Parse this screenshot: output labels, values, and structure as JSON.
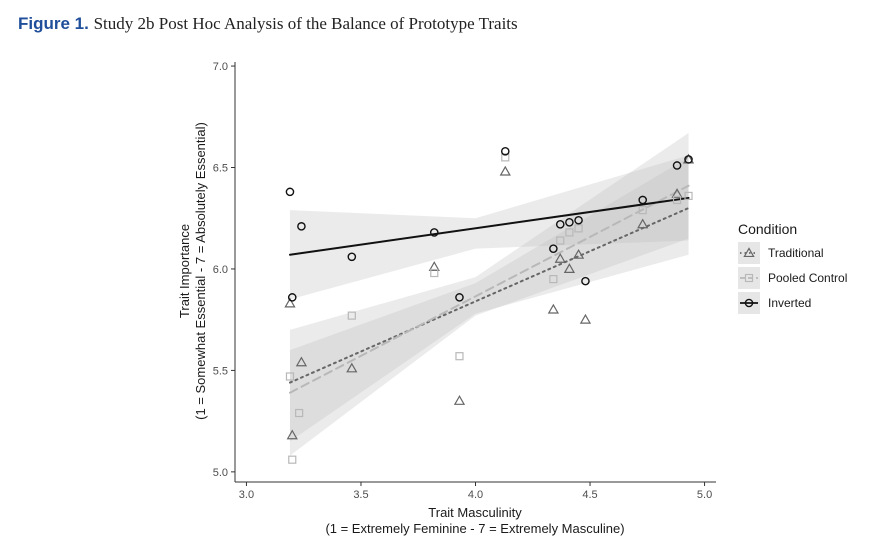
{
  "figure": {
    "label": "Figure 1.",
    "caption": "Study 2b Post Hoc Analysis of the Balance of Prototype Traits"
  },
  "chart_data": {
    "type": "scatter",
    "title": "Study 2b Post Hoc Analysis of the Balance of Prototype Traits",
    "xlabel_line1": "Trait Masculinity",
    "xlabel_line2": "(1 = Extremely Feminine - 7 = Extremely Masculine)",
    "ylabel_line1": "Trait Importance",
    "ylabel_line2": "(1 = Somewhat Essential - 7 = Absolutely Essential)",
    "xlim": [
      2.95,
      5.05
    ],
    "ylim": [
      4.95,
      7.02
    ],
    "x_ticks": [
      3.0,
      3.5,
      4.0,
      4.5,
      5.0
    ],
    "x_tick_labels": [
      "3.0",
      "3.5",
      "4.0",
      "4.5",
      "5.0"
    ],
    "y_ticks": [
      5.0,
      5.5,
      6.0,
      6.5,
      7.0
    ],
    "y_tick_labels": [
      "5.0",
      "5.5",
      "6.0",
      "6.5",
      "7.0"
    ],
    "grid": false,
    "legend": {
      "title": "Condition",
      "position": "right"
    },
    "series": [
      {
        "name": "Traditional",
        "marker": "triangle",
        "line_style": "dotted",
        "color": "#666666",
        "points": [
          [
            3.19,
            5.83
          ],
          [
            3.2,
            5.18
          ],
          [
            3.24,
            5.54
          ],
          [
            3.46,
            5.51
          ],
          [
            3.82,
            6.01
          ],
          [
            3.93,
            5.35
          ],
          [
            4.13,
            6.48
          ],
          [
            4.34,
            5.8
          ],
          [
            4.37,
            6.05
          ],
          [
            4.41,
            6.0
          ],
          [
            4.45,
            6.07
          ],
          [
            4.48,
            5.75
          ],
          [
            4.73,
            6.22
          ],
          [
            4.88,
            6.37
          ],
          [
            4.93,
            6.54
          ]
        ],
        "fit": [
          [
            3.19,
            5.44
          ],
          [
            4.93,
            6.3
          ]
        ],
        "ci_upper": [
          [
            3.19,
            5.6
          ],
          [
            4.0,
            5.93
          ],
          [
            4.93,
            6.55
          ]
        ],
        "ci_lower": [
          [
            3.19,
            5.15
          ],
          [
            4.0,
            5.78
          ],
          [
            4.93,
            6.07
          ]
        ]
      },
      {
        "name": "Pooled Control",
        "marker": "square",
        "line_style": "dashed",
        "color": "#b8b8b8",
        "points": [
          [
            3.19,
            5.47
          ],
          [
            3.2,
            5.06
          ],
          [
            3.23,
            5.29
          ],
          [
            3.46,
            5.77
          ],
          [
            3.82,
            5.98
          ],
          [
            3.93,
            5.57
          ],
          [
            4.13,
            6.55
          ],
          [
            4.34,
            5.95
          ],
          [
            4.37,
            6.14
          ],
          [
            4.41,
            6.18
          ],
          [
            4.45,
            6.2
          ],
          [
            4.73,
            6.29
          ],
          [
            4.88,
            6.34
          ],
          [
            4.93,
            6.36
          ]
        ],
        "fit": [
          [
            3.19,
            5.39
          ],
          [
            4.93,
            6.41
          ]
        ],
        "ci_upper": [
          [
            3.19,
            5.7
          ],
          [
            4.0,
            5.96
          ],
          [
            4.93,
            6.67
          ]
        ],
        "ci_lower": [
          [
            3.19,
            5.08
          ],
          [
            4.0,
            5.77
          ],
          [
            4.93,
            6.15
          ]
        ]
      },
      {
        "name": "Inverted",
        "marker": "circle",
        "line_style": "solid",
        "color": "#111111",
        "points": [
          [
            3.19,
            6.38
          ],
          [
            3.2,
            5.86
          ],
          [
            3.24,
            6.21
          ],
          [
            3.46,
            6.06
          ],
          [
            3.82,
            6.18
          ],
          [
            3.93,
            5.86
          ],
          [
            4.13,
            6.58
          ],
          [
            4.34,
            6.1
          ],
          [
            4.37,
            6.22
          ],
          [
            4.41,
            6.23
          ],
          [
            4.45,
            6.24
          ],
          [
            4.48,
            5.94
          ],
          [
            4.73,
            6.34
          ],
          [
            4.88,
            6.51
          ],
          [
            4.93,
            6.54
          ]
        ],
        "fit": [
          [
            3.19,
            6.07
          ],
          [
            4.93,
            6.35
          ]
        ],
        "ci_upper": [
          [
            3.19,
            6.29
          ],
          [
            4.0,
            6.25
          ],
          [
            4.93,
            6.56
          ]
        ],
        "ci_lower": [
          [
            3.19,
            5.85
          ],
          [
            4.0,
            6.1
          ],
          [
            4.93,
            6.14
          ]
        ]
      }
    ]
  }
}
